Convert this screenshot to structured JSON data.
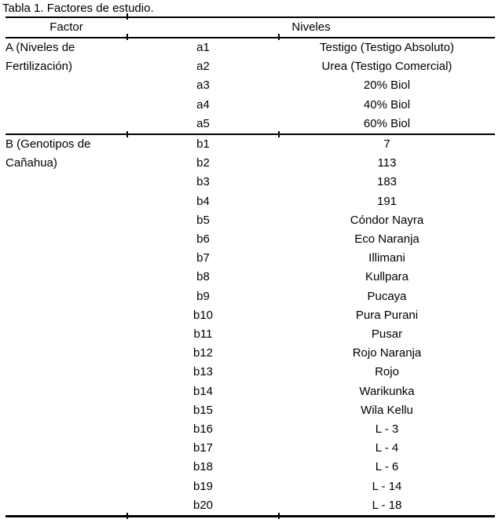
{
  "title": "Tabla 1. Factores de estudio.",
  "table": {
    "headers": {
      "factor": "Factor",
      "niveles": "Niveles"
    },
    "sections": [
      {
        "factor_lines": [
          "A (Niveles de",
          "Fertilización)"
        ],
        "rows": [
          {
            "code": "a1",
            "level": "Testigo (Testigo Absoluto)"
          },
          {
            "code": "a2",
            "level": "Urea (Testigo Comercial)"
          },
          {
            "code": "a3",
            "level": "20% Biol"
          },
          {
            "code": "a4",
            "level": "40% Biol"
          },
          {
            "code": "a5",
            "level": "60% Biol"
          }
        ]
      },
      {
        "factor_lines": [
          "B (Genotipos de",
          "Cañahua)"
        ],
        "rows": [
          {
            "code": "b1",
            "level": "7"
          },
          {
            "code": "b2",
            "level": "113"
          },
          {
            "code": "b3",
            "level": "183"
          },
          {
            "code": "b4",
            "level": "191"
          },
          {
            "code": "b5",
            "level": "Cóndor Nayra"
          },
          {
            "code": "b6",
            "level": "Eco Naranja"
          },
          {
            "code": "b7",
            "level": "Illimani"
          },
          {
            "code": "b8",
            "level": "Kullpara"
          },
          {
            "code": "b9",
            "level": "Pucaya"
          },
          {
            "code": "b10",
            "level": "Pura Purani"
          },
          {
            "code": "b11",
            "level": "Pusar"
          },
          {
            "code": "b12",
            "level": "Rojo Naranja"
          },
          {
            "code": "b13",
            "level": "Rojo"
          },
          {
            "code": "b14",
            "level": "Warikunka"
          },
          {
            "code": "b15",
            "level": "Wila Kellu"
          },
          {
            "code": "b16",
            "level": "L - 3"
          },
          {
            "code": "b17",
            "level": "L - 4"
          },
          {
            "code": "b18",
            "level": "L - 6"
          },
          {
            "code": "b19",
            "level": "L - 14"
          },
          {
            "code": "b20",
            "level": "L - 18"
          }
        ]
      }
    ]
  },
  "colors": {
    "text": "#000000",
    "background": "#ffffff",
    "rule": "#000000"
  }
}
